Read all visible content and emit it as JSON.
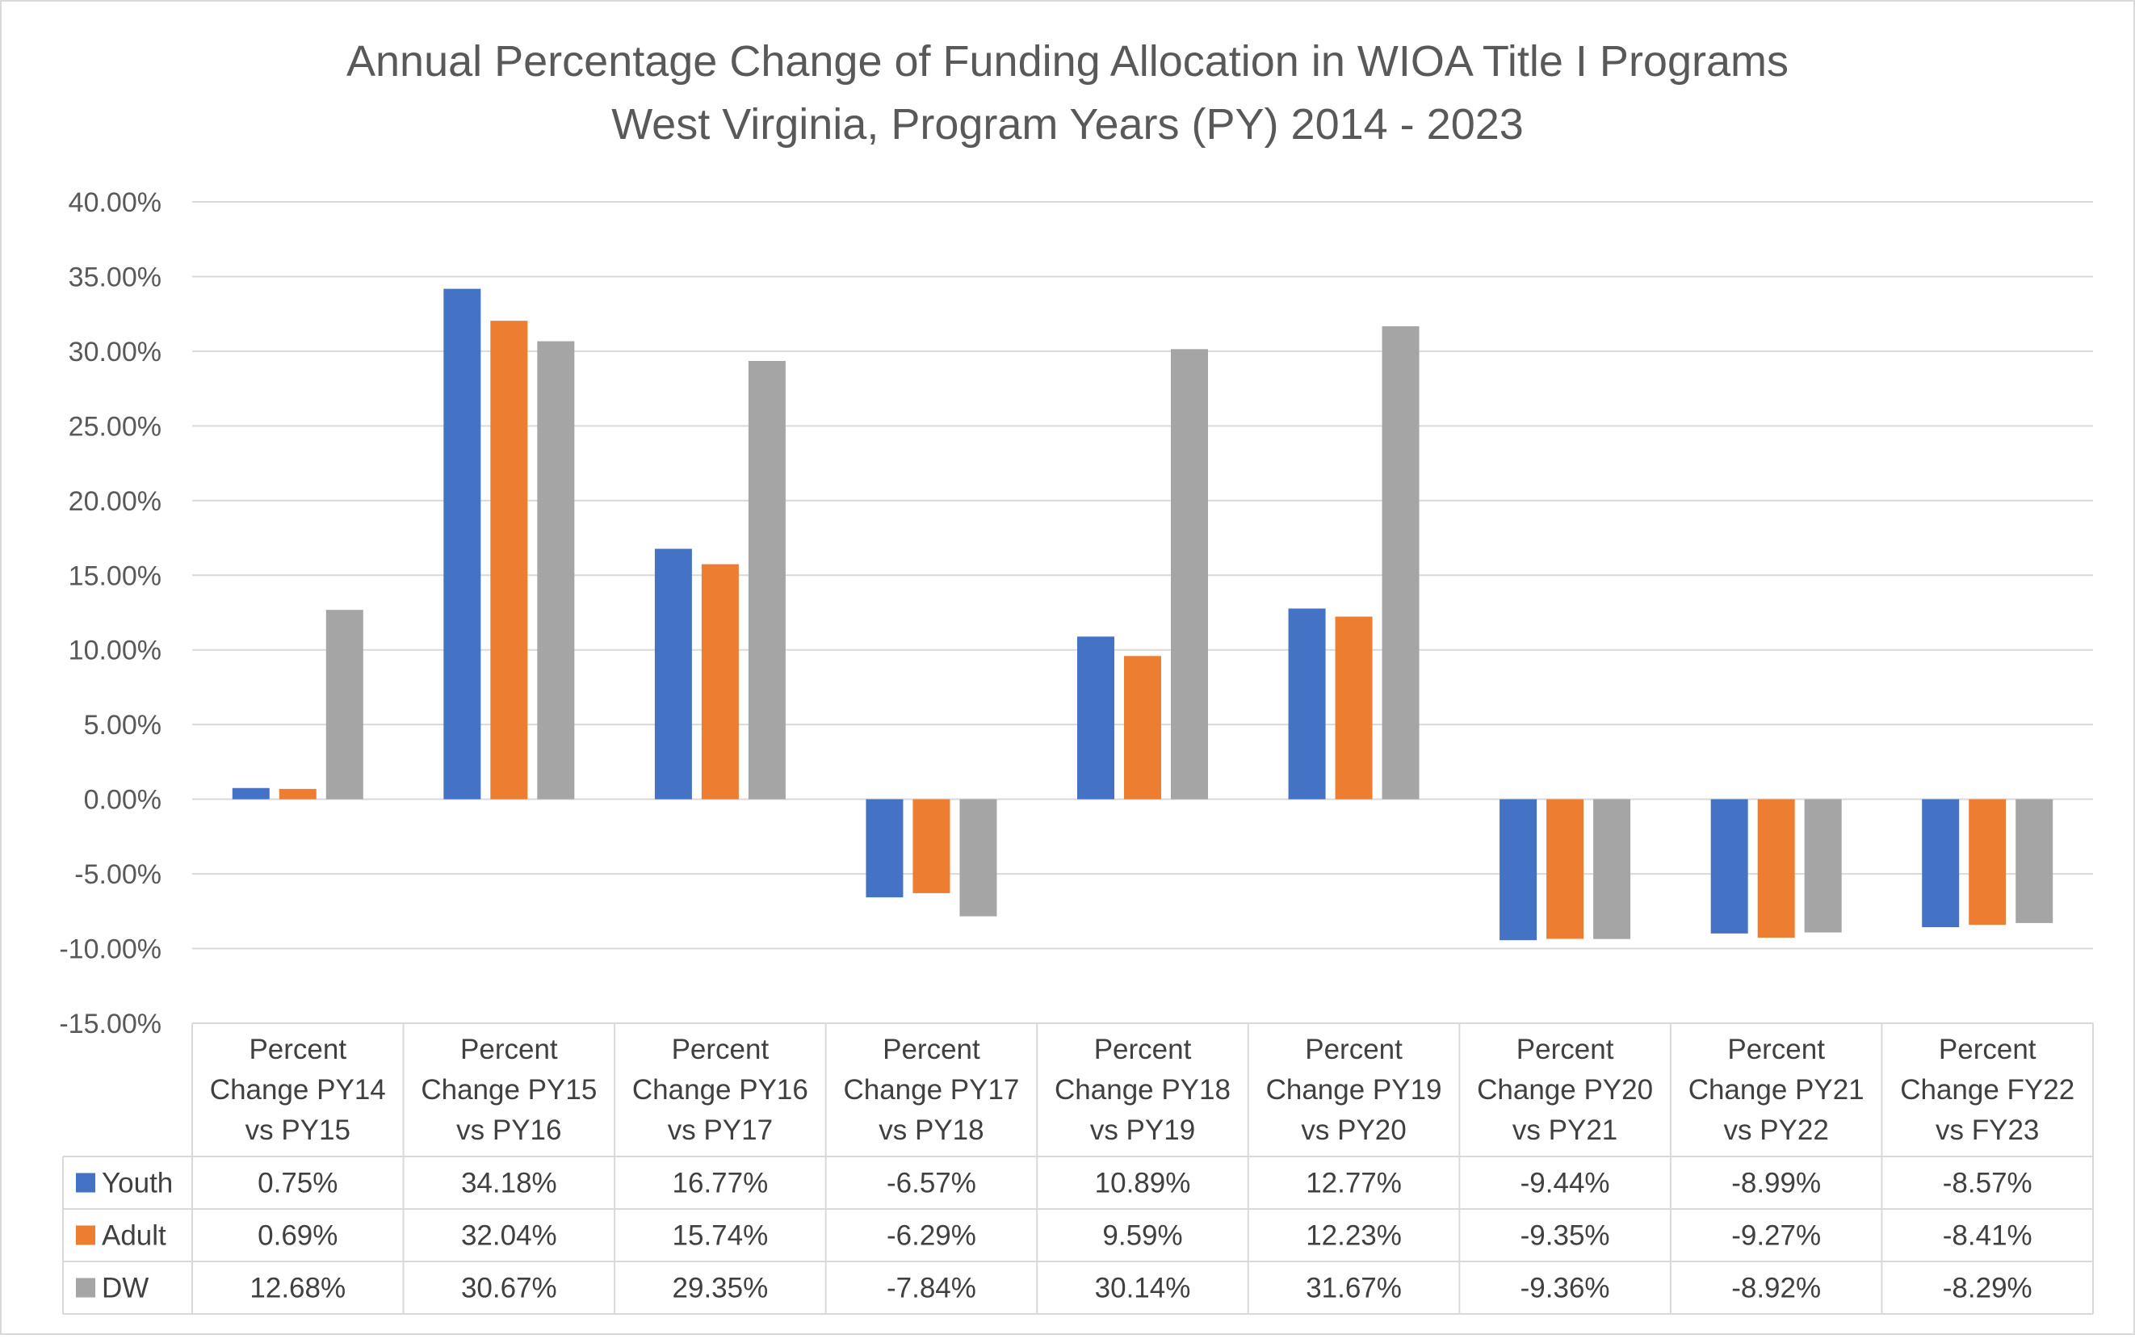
{
  "chart_data": {
    "type": "bar",
    "title": "Annual Percentage Change of Funding Allocation in WIOA Title I Programs",
    "subtitle": "West Virginia, Program Years (PY) 2014 - 2023",
    "categories": [
      [
        "Percent",
        "Change PY14",
        "vs PY15"
      ],
      [
        "Percent",
        "Change PY15",
        "vs PY16"
      ],
      [
        "Percent",
        "Change PY16",
        "vs PY17"
      ],
      [
        "Percent",
        "Change PY17",
        "vs PY18"
      ],
      [
        "Percent",
        "Change PY18",
        "vs PY19"
      ],
      [
        "Percent",
        "Change PY19",
        "vs PY20"
      ],
      [
        "Percent",
        "Change PY20",
        "vs PY21"
      ],
      [
        "Percent",
        "Change PY21",
        "vs PY22"
      ],
      [
        "Percent",
        "Change FY22",
        "vs FY23"
      ]
    ],
    "series": [
      {
        "name": "Youth",
        "color": "#4472C4",
        "values": [
          0.75,
          34.18,
          16.77,
          -6.57,
          10.89,
          12.77,
          -9.44,
          -8.99,
          -8.57
        ],
        "labels": [
          "0.75%",
          "34.18%",
          "16.77%",
          "-6.57%",
          "10.89%",
          "12.77%",
          "-9.44%",
          "-8.99%",
          "-8.57%"
        ]
      },
      {
        "name": "Adult",
        "color": "#ED7D31",
        "values": [
          0.69,
          32.04,
          15.74,
          -6.29,
          9.59,
          12.23,
          -9.35,
          -9.27,
          -8.41
        ],
        "labels": [
          "0.69%",
          "32.04%",
          "15.74%",
          "-6.29%",
          "9.59%",
          "12.23%",
          "-9.35%",
          "-9.27%",
          "-8.41%"
        ]
      },
      {
        "name": "DW",
        "color": "#A5A5A5",
        "values": [
          12.68,
          30.67,
          29.35,
          -7.84,
          30.14,
          31.67,
          -9.36,
          -8.92,
          -8.29
        ],
        "labels": [
          "12.68%",
          "30.67%",
          "29.35%",
          "-7.84%",
          "30.14%",
          "31.67%",
          "-9.36%",
          "-8.92%",
          "-8.29%"
        ]
      }
    ],
    "y_ticks": [
      40,
      35,
      30,
      25,
      20,
      15,
      10,
      5,
      0,
      -5,
      -10,
      -15
    ],
    "y_tick_labels": [
      "40.00%",
      "35.00%",
      "30.00%",
      "25.00%",
      "20.00%",
      "15.00%",
      "10.00%",
      "5.00%",
      "0.00%",
      "-5.00%",
      "-10.00%",
      "-15.00%"
    ],
    "ylim": [
      -15,
      40
    ],
    "grid": true,
    "legend": "data-table"
  }
}
